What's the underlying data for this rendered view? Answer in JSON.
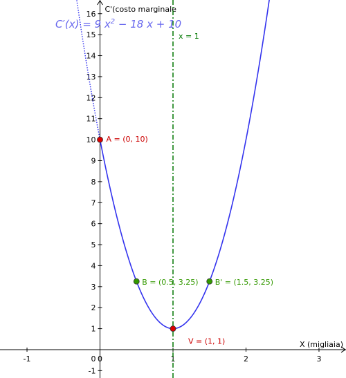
{
  "chart_data": {
    "type": "line",
    "title": "",
    "xlabel": "X (migliaia)",
    "ylabel": "C'(costo marginale",
    "xlim": [
      -1.37,
      3.37
    ],
    "ylim": [
      -1.35,
      16.65
    ],
    "x_ticks": [
      -1,
      0,
      1,
      2,
      3
    ],
    "y_ticks": [
      -1,
      1,
      2,
      3,
      4,
      5,
      6,
      7,
      8,
      9,
      10,
      11,
      12,
      13,
      14,
      15,
      16
    ],
    "origin_label": "0",
    "grid": false,
    "function": {
      "formula": "C'(x) = 9x² − 18x + 10",
      "coefficients": {
        "a": 9,
        "b": 18,
        "c": 10
      },
      "domain_solid": [
        0,
        3.37
      ],
      "domain_dotted": [
        -0.37,
        0
      ],
      "color": "#3333ee"
    },
    "vertical_line": {
      "x": 1,
      "label": "x = 1",
      "color": "#007700"
    },
    "points": [
      {
        "name": "A",
        "x": 0,
        "y": 10,
        "label": "A = (0, 10)",
        "color": "#dd0000",
        "text_color": "#cc0000"
      },
      {
        "name": "B",
        "x": 0.5,
        "y": 3.25,
        "label": "B = (0.5, 3.25)",
        "color": "#339900",
        "text_color": "#339900"
      },
      {
        "name": "B'",
        "x": 1.5,
        "y": 3.25,
        "label": "B' = (1.5, 3.25)",
        "color": "#339900",
        "text_color": "#339900"
      },
      {
        "name": "V",
        "x": 1,
        "y": 1,
        "label": "V = (1, 1)",
        "color": "#dd0000",
        "text_color": "#cc0000"
      }
    ]
  }
}
